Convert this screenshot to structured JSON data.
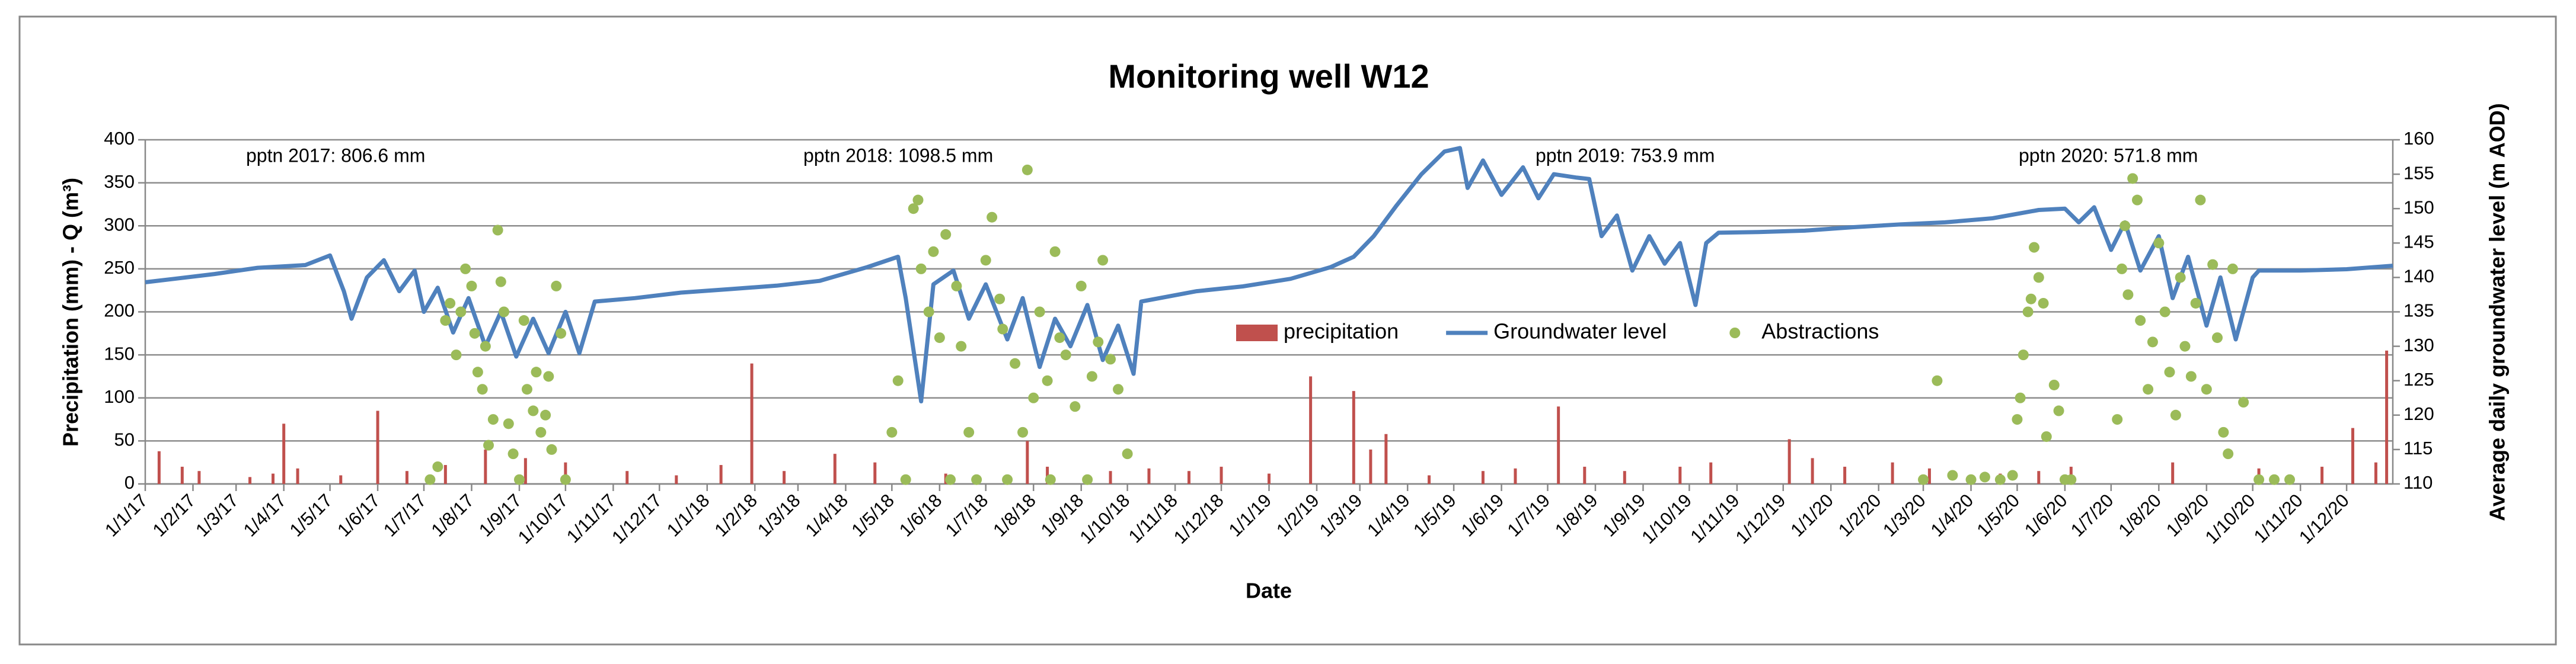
{
  "chart_data": {
    "type": "combo",
    "title": "Monitoring well W12",
    "xlabel": "Date",
    "ylabel": "Precipitation (mm) - Q (m³)",
    "y2label": "Average daily groundwater level (m AOD)",
    "annotations": [
      "pptn 2017: 806.6 mm",
      "pptn 2018: 1098.5 mm",
      "pptn 2019: 753.9 mm",
      "pptn 2020: 571.8 mm"
    ],
    "xlim": [
      "2017-01-01",
      "2020-12-31"
    ],
    "xticks": [
      {
        "value": "2017-01-01",
        "label": "1/1/17"
      },
      {
        "value": "2017-02-01",
        "label": "1/2/17"
      },
      {
        "value": "2017-03-01",
        "label": "1/3/17"
      },
      {
        "value": "2017-04-01",
        "label": "1/4/17"
      },
      {
        "value": "2017-05-01",
        "label": "1/5/17"
      },
      {
        "value": "2017-06-01",
        "label": "1/6/17"
      },
      {
        "value": "2017-07-01",
        "label": "1/7/17"
      },
      {
        "value": "2017-08-01",
        "label": "1/8/17"
      },
      {
        "value": "2017-09-01",
        "label": "1/9/17"
      },
      {
        "value": "2017-10-01",
        "label": "1/10/17"
      },
      {
        "value": "2017-11-01",
        "label": "1/11/17"
      },
      {
        "value": "2017-12-01",
        "label": "1/12/17"
      },
      {
        "value": "2018-01-01",
        "label": "1/1/18"
      },
      {
        "value": "2018-02-01",
        "label": "1/2/18"
      },
      {
        "value": "2018-03-01",
        "label": "1/3/18"
      },
      {
        "value": "2018-04-01",
        "label": "1/4/18"
      },
      {
        "value": "2018-05-01",
        "label": "1/5/18"
      },
      {
        "value": "2018-06-01",
        "label": "1/6/18"
      },
      {
        "value": "2018-07-01",
        "label": "1/7/18"
      },
      {
        "value": "2018-08-01",
        "label": "1/8/18"
      },
      {
        "value": "2018-09-01",
        "label": "1/9/18"
      },
      {
        "value": "2018-10-01",
        "label": "1/10/18"
      },
      {
        "value": "2018-11-01",
        "label": "1/11/18"
      },
      {
        "value": "2018-12-01",
        "label": "1/12/18"
      },
      {
        "value": "2019-01-01",
        "label": "1/1/19"
      },
      {
        "value": "2019-02-01",
        "label": "1/2/19"
      },
      {
        "value": "2019-03-01",
        "label": "1/3/19"
      },
      {
        "value": "2019-04-01",
        "label": "1/4/19"
      },
      {
        "value": "2019-05-01",
        "label": "1/5/19"
      },
      {
        "value": "2019-06-01",
        "label": "1/6/19"
      },
      {
        "value": "2019-07-01",
        "label": "1/7/19"
      },
      {
        "value": "2019-08-01",
        "label": "1/8/19"
      },
      {
        "value": "2019-09-01",
        "label": "1/9/19"
      },
      {
        "value": "2019-10-01",
        "label": "1/10/19"
      },
      {
        "value": "2019-11-01",
        "label": "1/11/19"
      },
      {
        "value": "2019-12-01",
        "label": "1/12/19"
      },
      {
        "value": "2020-01-01",
        "label": "1/1/20"
      },
      {
        "value": "2020-02-01",
        "label": "1/2/20"
      },
      {
        "value": "2020-03-01",
        "label": "1/3/20"
      },
      {
        "value": "2020-04-01",
        "label": "1/4/20"
      },
      {
        "value": "2020-05-01",
        "label": "1/5/20"
      },
      {
        "value": "2020-06-01",
        "label": "1/6/20"
      },
      {
        "value": "2020-07-01",
        "label": "1/7/20"
      },
      {
        "value": "2020-08-01",
        "label": "1/8/20"
      },
      {
        "value": "2020-09-01",
        "label": "1/9/20"
      },
      {
        "value": "2020-10-01",
        "label": "1/10/20"
      },
      {
        "value": "2020-11-01",
        "label": "1/11/20"
      },
      {
        "value": "2020-12-01",
        "label": "1/12/20"
      }
    ],
    "ylim": [
      0,
      400
    ],
    "yticks": [
      0,
      50,
      100,
      150,
      200,
      250,
      300,
      350,
      400
    ],
    "y2lim": [
      110,
      160
    ],
    "y2ticks": [
      110,
      115,
      120,
      125,
      130,
      135,
      140,
      145,
      150,
      155,
      160
    ],
    "grid": true,
    "legend": "center-right",
    "series": [
      {
        "name": "precipitation",
        "type": "bar",
        "color": "#c0504d",
        "x": [
          "2017-01-10",
          "2017-01-25",
          "2017-02-05",
          "2017-03-10",
          "2017-03-25",
          "2017-04-01",
          "2017-04-10",
          "2017-05-08",
          "2017-06-01",
          "2017-06-20",
          "2017-07-15",
          "2017-08-10",
          "2017-09-05",
          "2017-10-01",
          "2017-11-10",
          "2017-12-12",
          "2018-01-10",
          "2018-01-30",
          "2018-02-20",
          "2018-03-25",
          "2018-04-20",
          "2018-06-05",
          "2018-07-28",
          "2018-08-10",
          "2018-09-20",
          "2018-10-15",
          "2018-11-10",
          "2018-12-01",
          "2019-01-01",
          "2019-01-28",
          "2019-02-25",
          "2019-03-08",
          "2019-03-18",
          "2019-04-15",
          "2019-05-20",
          "2019-06-10",
          "2019-07-08",
          "2019-07-25",
          "2019-08-20",
          "2019-09-25",
          "2019-10-15",
          "2019-12-05",
          "2019-12-20",
          "2020-01-10",
          "2020-02-10",
          "2020-03-05",
          "2020-04-20",
          "2020-05-15",
          "2020-06-05",
          "2020-08-10",
          "2020-10-05",
          "2020-11-15",
          "2020-12-05",
          "2020-12-20",
          "2020-12-27"
        ],
        "values": [
          38,
          20,
          15,
          8,
          12,
          70,
          18,
          10,
          85,
          15,
          22,
          40,
          30,
          25,
          15,
          10,
          22,
          140,
          15,
          35,
          25,
          12,
          50,
          20,
          15,
          18,
          15,
          20,
          12,
          125,
          108,
          40,
          58,
          10,
          15,
          18,
          90,
          20,
          15,
          20,
          25,
          52,
          30,
          20,
          25,
          18,
          12,
          15,
          20,
          25,
          18,
          20,
          65,
          25,
          155
        ]
      },
      {
        "name": "Groundwater level",
        "type": "line",
        "axis": "y2",
        "color": "#4f81bd",
        "x": [
          "2017-01-01",
          "2017-01-20",
          "2017-02-15",
          "2017-03-15",
          "2017-04-15",
          "2017-05-01",
          "2017-05-10",
          "2017-05-15",
          "2017-05-25",
          "2017-06-05",
          "2017-06-15",
          "2017-06-25",
          "2017-07-01",
          "2017-07-10",
          "2017-07-20",
          "2017-07-30",
          "2017-08-10",
          "2017-08-20",
          "2017-08-30",
          "2017-09-10",
          "2017-09-20",
          "2017-10-01",
          "2017-10-10",
          "2017-10-20",
          "2017-11-15",
          "2017-12-15",
          "2018-01-15",
          "2018-02-15",
          "2018-03-15",
          "2018-04-15",
          "2018-05-05",
          "2018-05-10",
          "2018-05-20",
          "2018-05-28",
          "2018-06-10",
          "2018-06-20",
          "2018-07-01",
          "2018-07-15",
          "2018-07-25",
          "2018-08-05",
          "2018-08-15",
          "2018-08-25",
          "2018-09-05",
          "2018-09-15",
          "2018-09-25",
          "2018-10-05",
          "2018-10-10",
          "2018-11-15",
          "2018-12-15",
          "2019-01-15",
          "2019-02-10",
          "2019-02-25",
          "2019-03-10",
          "2019-03-25",
          "2019-04-10",
          "2019-04-25",
          "2019-05-05",
          "2019-05-10",
          "2019-05-20",
          "2019-06-01",
          "2019-06-15",
          "2019-06-25",
          "2019-07-05",
          "2019-07-20",
          "2019-07-28",
          "2019-08-05",
          "2019-08-15",
          "2019-08-25",
          "2019-09-05",
          "2019-09-15",
          "2019-09-25",
          "2019-10-05",
          "2019-10-12",
          "2019-10-20",
          "2019-11-15",
          "2019-12-15",
          "2020-01-15",
          "2020-02-15",
          "2020-03-15",
          "2020-04-15",
          "2020-05-15",
          "2020-06-01",
          "2020-06-10",
          "2020-06-20",
          "2020-07-01",
          "2020-07-10",
          "2020-07-20",
          "2020-08-01",
          "2020-08-10",
          "2020-08-20",
          "2020-09-01",
          "2020-09-10",
          "2020-09-20",
          "2020-10-01",
          "2020-10-05",
          "2020-11-01",
          "2020-12-01",
          "2020-12-31"
        ],
        "values": [
          139.3,
          139.8,
          140.5,
          141.4,
          141.8,
          143.2,
          138,
          134,
          140,
          142.5,
          138,
          141,
          135,
          138.5,
          132,
          137,
          130,
          135,
          128.5,
          134,
          129,
          135,
          129,
          136.5,
          137,
          137.8,
          138.3,
          138.8,
          139.5,
          141.5,
          143,
          137,
          122,
          139,
          141,
          134,
          139,
          131,
          137,
          127,
          134,
          130,
          136,
          128,
          133,
          126,
          136.5,
          138,
          138.7,
          139.8,
          141.5,
          143,
          146,
          150.5,
          155,
          158.3,
          158.8,
          153,
          157,
          152,
          156,
          151.5,
          155,
          154.5,
          154.3,
          146,
          149,
          141,
          146,
          142,
          145,
          136,
          145,
          146.5,
          146.6,
          146.8,
          147.3,
          147.7,
          148,
          148.6,
          149.8,
          150,
          148,
          150.2,
          144,
          148,
          141,
          146,
          137,
          143,
          133,
          140,
          131,
          140,
          141,
          141,
          141.2,
          141.7
        ]
      },
      {
        "name": "Abstractions",
        "type": "scatter",
        "color": "#9bbb59",
        "x": [
          "2017-07-05",
          "2017-07-10",
          "2017-07-15",
          "2017-07-18",
          "2017-07-22",
          "2017-07-25",
          "2017-07-28",
          "2017-08-01",
          "2017-08-03",
          "2017-08-05",
          "2017-08-08",
          "2017-08-10",
          "2017-08-12",
          "2017-08-15",
          "2017-08-18",
          "2017-08-20",
          "2017-08-22",
          "2017-08-25",
          "2017-08-28",
          "2017-09-01",
          "2017-09-04",
          "2017-09-06",
          "2017-09-10",
          "2017-09-12",
          "2017-09-15",
          "2017-09-18",
          "2017-09-20",
          "2017-09-22",
          "2017-09-25",
          "2017-09-28",
          "2017-10-01",
          "2018-05-01",
          "2018-05-05",
          "2018-05-10",
          "2018-05-15",
          "2018-05-18",
          "2018-05-20",
          "2018-05-25",
          "2018-05-28",
          "2018-06-01",
          "2018-06-05",
          "2018-06-08",
          "2018-06-12",
          "2018-06-15",
          "2018-06-20",
          "2018-06-25",
          "2018-07-01",
          "2018-07-05",
          "2018-07-10",
          "2018-07-12",
          "2018-07-15",
          "2018-07-20",
          "2018-07-25",
          "2018-07-28",
          "2018-08-01",
          "2018-08-05",
          "2018-08-10",
          "2018-08-12",
          "2018-08-15",
          "2018-08-18",
          "2018-08-22",
          "2018-08-28",
          "2018-09-01",
          "2018-09-05",
          "2018-09-08",
          "2018-09-12",
          "2018-09-15",
          "2018-09-20",
          "2018-09-25",
          "2018-10-01",
          "2020-03-01",
          "2020-03-10",
          "2020-03-20",
          "2020-04-01",
          "2020-04-10",
          "2020-04-20",
          "2020-04-28",
          "2020-05-01",
          "2020-05-03",
          "2020-05-05",
          "2020-05-08",
          "2020-05-10",
          "2020-05-12",
          "2020-05-15",
          "2020-05-18",
          "2020-05-20",
          "2020-05-25",
          "2020-05-28",
          "2020-06-01",
          "2020-06-05",
          "2020-07-05",
          "2020-07-08",
          "2020-07-10",
          "2020-07-12",
          "2020-07-15",
          "2020-07-18",
          "2020-07-20",
          "2020-07-25",
          "2020-07-28",
          "2020-08-01",
          "2020-08-05",
          "2020-08-08",
          "2020-08-12",
          "2020-08-15",
          "2020-08-18",
          "2020-08-22",
          "2020-08-25",
          "2020-08-28",
          "2020-09-01",
          "2020-09-05",
          "2020-09-08",
          "2020-09-12",
          "2020-09-15",
          "2020-09-18",
          "2020-09-25",
          "2020-10-05",
          "2020-10-15",
          "2020-10-25"
        ],
        "values": [
          5,
          20,
          190,
          210,
          150,
          200,
          250,
          230,
          175,
          130,
          110,
          160,
          45,
          75,
          295,
          235,
          200,
          70,
          35,
          5,
          190,
          110,
          85,
          130,
          60,
          80,
          125,
          40,
          230,
          175,
          5,
          60,
          120,
          5,
          320,
          330,
          250,
          200,
          270,
          170,
          290,
          5,
          230,
          160,
          60,
          5,
          260,
          310,
          215,
          180,
          5,
          140,
          60,
          365,
          100,
          200,
          120,
          5,
          270,
          170,
          150,
          90,
          230,
          5,
          125,
          165,
          260,
          145,
          110,
          35,
          5,
          120,
          10,
          5,
          8,
          5,
          10,
          75,
          100,
          150,
          200,
          215,
          275,
          240,
          210,
          55,
          115,
          85,
          5,
          5,
          75,
          250,
          300,
          220,
          355,
          330,
          190,
          110,
          165,
          280,
          200,
          130,
          80,
          240,
          160,
          125,
          210,
          330,
          110,
          255,
          170,
          60,
          35,
          250,
          95,
          5,
          5,
          5
        ]
      }
    ]
  }
}
